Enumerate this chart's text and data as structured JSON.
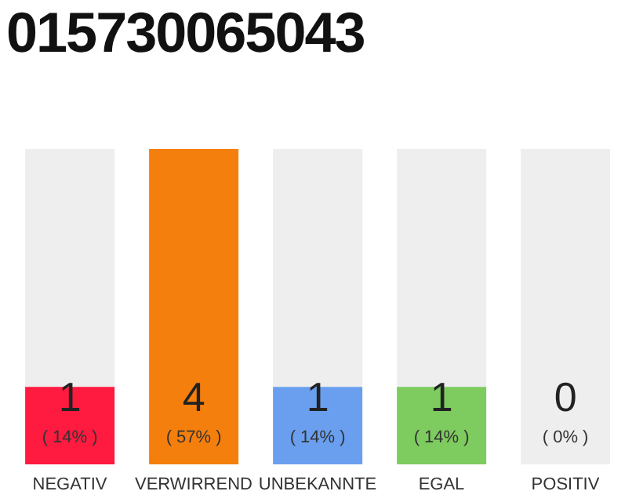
{
  "chart_data": {
    "type": "bar",
    "title": "015730065043",
    "categories": [
      "NEGATIV",
      "VERWIRREND",
      "UNBEKANNTE",
      "EGAL",
      "POSITIV"
    ],
    "values": [
      14,
      57,
      14,
      14,
      0
    ],
    "colors": [
      "#ff1a40",
      "#f57f0d",
      "#6a9ff0",
      "#7ecb5f",
      "#9e9e9e"
    ],
    "value_labels": [
      "( 14% )",
      "( 57% )",
      "( 14% )",
      "( 14% )",
      "( 0% )"
    ],
    "tick_labels": "x",
    "annotations": [
      "1",
      "4",
      "1",
      "1",
      "0"
    ]
  }
}
